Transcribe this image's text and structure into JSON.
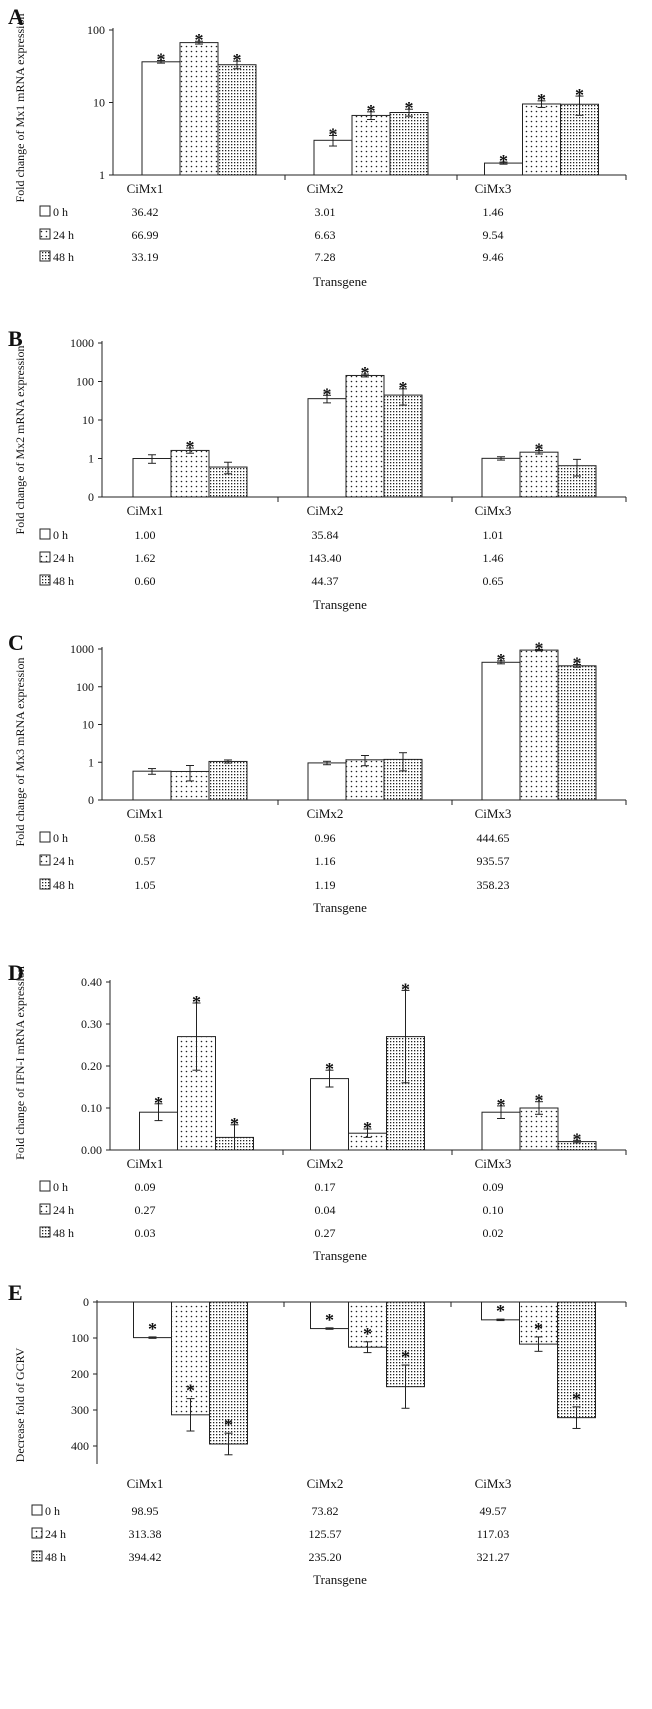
{
  "figure": {
    "categories": [
      "CiMx1",
      "CiMx2",
      "CiMx3"
    ],
    "legend": [
      "0 h",
      "24 h",
      "48 h"
    ],
    "xlabel": "Transgene"
  },
  "chart_data": [
    {
      "panel": "A",
      "type": "bar",
      "scale": "log",
      "ylabel": "Fold change of Mx1 mRNA expression",
      "ylim": [
        1,
        100
      ],
      "ticks": [
        1,
        10,
        100
      ],
      "tick_labels": [
        "1",
        "10",
        "100"
      ],
      "categories": [
        "CiMx1",
        "CiMx2",
        "CiMx3"
      ],
      "series": [
        {
          "name": "0 h",
          "values": [
            36.42,
            3.01,
            1.46
          ],
          "labels": [
            "36.42",
            "3.01",
            "1.46"
          ],
          "err": [
            1.5,
            0.5,
            0.05
          ],
          "sig": [
            true,
            true,
            true
          ]
        },
        {
          "name": "24 h",
          "values": [
            66.99,
            6.63,
            9.54
          ],
          "labels": [
            "66.99",
            "6.63",
            "9.54"
          ],
          "err": [
            3,
            0.8,
            1.0
          ],
          "sig": [
            true,
            true,
            true
          ]
        },
        {
          "name": "48 h",
          "values": [
            33.19,
            7.28,
            9.46
          ],
          "labels": [
            "33.19",
            "7.28",
            "9.46"
          ],
          "err": [
            4,
            0.8,
            2.8
          ],
          "sig": [
            true,
            true,
            true
          ]
        }
      ]
    },
    {
      "panel": "B",
      "type": "bar",
      "scale": "log",
      "ylabel": "Fold change of Mx2 mRNA expression",
      "ylim": [
        0.1,
        1000
      ],
      "ticks": [
        0.1,
        1,
        10,
        100,
        1000
      ],
      "tick_labels": [
        "0",
        "1",
        "10",
        "100",
        "1000"
      ],
      "categories": [
        "CiMx1",
        "CiMx2",
        "CiMx3"
      ],
      "series": [
        {
          "name": "0 h",
          "values": [
            1.0,
            35.84,
            1.01
          ],
          "labels": [
            "1.00",
            "35.84",
            "1.01"
          ],
          "err": [
            0.25,
            8,
            0.1
          ],
          "sig": [
            false,
            true,
            false
          ]
        },
        {
          "name": "24 h",
          "values": [
            1.62,
            143.4,
            1.46
          ],
          "labels": [
            "1.62",
            "143.40",
            "1.46"
          ],
          "err": [
            0.25,
            12,
            0.15
          ],
          "sig": [
            true,
            true,
            true
          ]
        },
        {
          "name": "48 h",
          "values": [
            0.6,
            44.37,
            0.65
          ],
          "labels": [
            "0.60",
            "44.37",
            "0.65"
          ],
          "err": [
            0.2,
            20,
            0.3
          ],
          "sig": [
            false,
            true,
            false
          ]
        }
      ]
    },
    {
      "panel": "C",
      "type": "bar",
      "scale": "log",
      "ylabel": "Fold change of Mx3 mRNA expression",
      "ylim": [
        0.1,
        1000
      ],
      "ticks": [
        0.1,
        1,
        10,
        100,
        1000
      ],
      "tick_labels": [
        "0",
        "1",
        "10",
        "100",
        "1000"
      ],
      "categories": [
        "CiMx1",
        "CiMx2",
        "CiMx3"
      ],
      "series": [
        {
          "name": "0 h",
          "values": [
            0.58,
            0.96,
            444.65
          ],
          "labels": [
            "0.58",
            "0.96",
            "444.65"
          ],
          "err": [
            0.1,
            0.1,
            40
          ],
          "sig": [
            false,
            false,
            true
          ]
        },
        {
          "name": "24 h",
          "values": [
            0.57,
            1.16,
            935.57
          ],
          "labels": [
            "0.57",
            "1.16",
            "935.57"
          ],
          "err": [
            0.25,
            0.35,
            40
          ],
          "sig": [
            false,
            false,
            true
          ]
        },
        {
          "name": "48 h",
          "values": [
            1.05,
            1.19,
            358.23
          ],
          "labels": [
            "1.05",
            "1.19",
            "358.23"
          ],
          "err": [
            0.1,
            0.6,
            30
          ],
          "sig": [
            false,
            false,
            true
          ]
        }
      ]
    },
    {
      "panel": "D",
      "type": "bar",
      "scale": "linear",
      "ylabel": "Fold change of IFN-I mRNA expression",
      "ylim": [
        0,
        0.4
      ],
      "ticks": [
        0,
        0.1,
        0.2,
        0.3,
        0.4
      ],
      "tick_labels": [
        "0.00",
        "0.10",
        "0.20",
        "0.30",
        "0.40"
      ],
      "categories": [
        "CiMx1",
        "CiMx2",
        "CiMx3"
      ],
      "series": [
        {
          "name": "0 h",
          "values": [
            0.09,
            0.17,
            0.09
          ],
          "labels": [
            "0.09",
            "0.17",
            "0.09"
          ],
          "err": [
            0.02,
            0.02,
            0.015
          ],
          "sig": [
            true,
            true,
            true
          ]
        },
        {
          "name": "24 h",
          "values": [
            0.27,
            0.04,
            0.1
          ],
          "labels": [
            "0.27",
            "0.04",
            "0.10"
          ],
          "err": [
            0.08,
            0.01,
            0.015
          ],
          "sig": [
            true,
            true,
            true
          ]
        },
        {
          "name": "48 h",
          "values": [
            0.03,
            0.27,
            0.02
          ],
          "labels": [
            "0.03",
            "0.27",
            "0.02"
          ],
          "err": [
            0.03,
            0.11,
            0.003
          ],
          "sig": [
            true,
            true,
            true
          ]
        }
      ]
    },
    {
      "panel": "E",
      "type": "bar",
      "scale": "linear",
      "inverted": true,
      "ylabel": "Decrease fold of GCRV",
      "ylim": [
        0,
        450
      ],
      "ticks": [
        0,
        100,
        200,
        300,
        400
      ],
      "tick_labels": [
        "0",
        "100",
        "200",
        "300",
        "400"
      ],
      "categories": [
        "CiMx1",
        "CiMx2",
        "CiMx3"
      ],
      "series": [
        {
          "name": "0 h",
          "values": [
            98.95,
            73.82,
            49.57
          ],
          "labels": [
            "98.95",
            "73.82",
            "49.57"
          ],
          "err": [
            2,
            2,
            2
          ],
          "sig": [
            true,
            true,
            true
          ]
        },
        {
          "name": "24 h",
          "values": [
            313.38,
            125.57,
            117.03
          ],
          "labels": [
            "313.38",
            "125.57",
            "117.03"
          ],
          "err": [
            45,
            15,
            20
          ],
          "sig": [
            true,
            true,
            true
          ]
        },
        {
          "name": "48 h",
          "values": [
            394.42,
            235.2,
            321.27
          ],
          "labels": [
            "394.42",
            "235.20",
            "321.27"
          ],
          "err": [
            30,
            60,
            30
          ],
          "sig": [
            true,
            true,
            true
          ]
        }
      ]
    }
  ]
}
